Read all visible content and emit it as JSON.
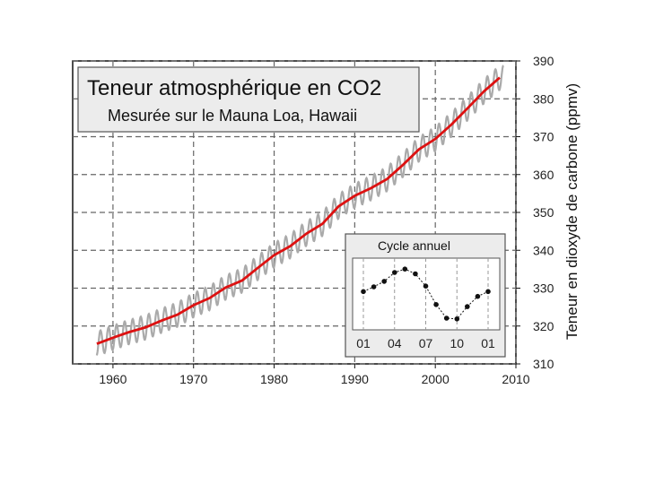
{
  "chart_data": [
    {
      "type": "line",
      "title": "Teneur atmosphérique en CO2",
      "subtitle": "Mesurée sur le Mauna Loa, Hawaii",
      "xlabel": "",
      "ylabel": "Teneur en dioxyde de carbone (ppmv)",
      "xlim": [
        1955,
        2010
      ],
      "ylim": [
        310,
        390
      ],
      "x_ticks": [
        "1960",
        "1970",
        "1980",
        "1990",
        "2000",
        "2010"
      ],
      "y_ticks": [
        "310",
        "320",
        "330",
        "340",
        "350",
        "360",
        "370",
        "380",
        "390"
      ],
      "grid": true,
      "y_axis_side": "right",
      "series": [
        {
          "role": "annual-mean",
          "color": "#dd1111",
          "x": [
            1958,
            1960,
            1962,
            1964,
            1966,
            1968,
            1970,
            1972,
            1974,
            1976,
            1978,
            1980,
            1982,
            1984,
            1986,
            1988,
            1990,
            1992,
            1994,
            1996,
            1998,
            2000,
            2002,
            2004,
            2006,
            2008
          ],
          "values": [
            315.3,
            316.9,
            318.4,
            319.6,
            321.4,
            323.0,
            325.5,
            327.4,
            330.2,
            332.0,
            335.4,
            338.7,
            341.1,
            344.4,
            347.0,
            351.6,
            354.4,
            356.4,
            358.8,
            362.6,
            366.7,
            369.4,
            373.2,
            377.5,
            381.9,
            385.6
          ]
        },
        {
          "role": "monthly-values",
          "color": "#aaaaaa",
          "seasonal_amplitude": 3.2
        }
      ]
    },
    {
      "type": "line",
      "title": "Cycle annuel",
      "x_ticks": [
        "01",
        "04",
        "07",
        "10",
        "01"
      ],
      "x": [
        1,
        2,
        3,
        4,
        5,
        6,
        7,
        8,
        9,
        10,
        11,
        12,
        13
      ],
      "values": [
        0.1,
        0.8,
        1.6,
        2.9,
        3.4,
        2.7,
        0.9,
        -1.8,
        -3.8,
        -3.9,
        -2.1,
        -0.6,
        0.1
      ],
      "ylim": [
        -5.5,
        5
      ]
    }
  ]
}
